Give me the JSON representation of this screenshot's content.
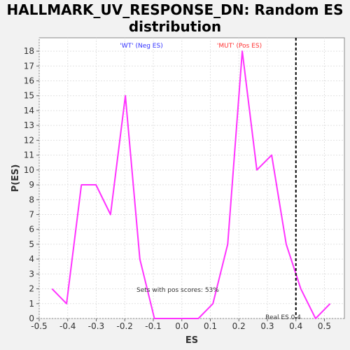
{
  "chart_data": {
    "type": "line",
    "title": "HALLMARK_UV_RESPONSE_DN: Random ES distribution",
    "xlabel": "ES",
    "ylabel": "P(ES)",
    "xlim": [
      -0.5,
      0.57
    ],
    "ylim": [
      0,
      18.9
    ],
    "x_ticks": [
      "-0.5",
      "-0.4",
      "-0.3",
      "-0.2",
      "-0.1",
      "0.0",
      "0.1",
      "0.2",
      "0.3",
      "0.4",
      "0.5"
    ],
    "y_ticks": [
      "0",
      "1",
      "2",
      "3",
      "4",
      "5",
      "6",
      "7",
      "8",
      "9",
      "10",
      "11",
      "12",
      "13",
      "14",
      "15",
      "16",
      "17",
      "18"
    ],
    "grid": true,
    "series": [
      {
        "color": "#ff33ff",
        "x": [
          -0.455,
          -0.404,
          -0.352,
          -0.301,
          -0.25,
          -0.198,
          -0.147,
          -0.096,
          -0.045,
          0.007,
          0.058,
          0.109,
          0.161,
          0.212,
          0.263,
          0.315,
          0.366,
          0.417,
          0.469,
          0.52
        ],
        "y": [
          2,
          1,
          9,
          9,
          7,
          15,
          4,
          0,
          0,
          0,
          0,
          1,
          5,
          18,
          10,
          11,
          5,
          2,
          0,
          1
        ]
      }
    ],
    "real_es": 0.4,
    "real_es_label": "Real ES 0.4",
    "neg_label": "'WT' (Neg ES)",
    "pos_label": "'MUT' (Pos ES)",
    "pos_scores_label": "Sets with pos scores: 53%",
    "colors": {
      "line": "#ff33ff",
      "neg_label": "#3333ff",
      "pos_label": "#ff3333",
      "real_es_line": "#000000"
    }
  }
}
